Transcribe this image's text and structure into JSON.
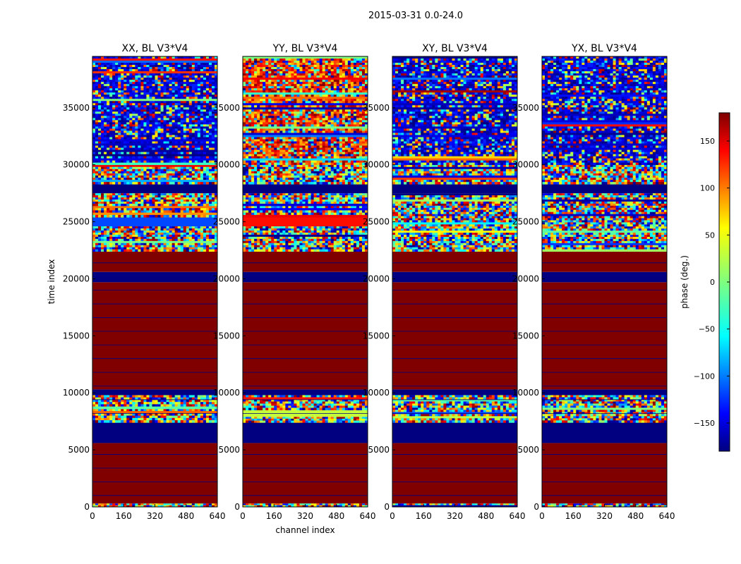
{
  "figure": {
    "suptitle": "2015-03-31 0.0-24.0",
    "colorbar": {
      "label": "phase (deg.)",
      "range": [
        -180,
        180
      ],
      "ticks": [
        "150",
        "100",
        "50",
        "0",
        "−50",
        "−100",
        "−150"
      ],
      "tick_values": [
        150,
        100,
        50,
        0,
        -50,
        -100,
        -150
      ],
      "colormap": "jet",
      "colors": [
        "#00007f",
        "#0000ff",
        "#007fff",
        "#00ffff",
        "#7fff7f",
        "#ffff00",
        "#ff7f00",
        "#ff0000",
        "#7f0000"
      ]
    }
  },
  "chart_data": [
    {
      "type": "heatmap",
      "title": "XX, BL V3*V4",
      "xlabel": "",
      "ylabel": "time index",
      "xlim": [
        0,
        640
      ],
      "ylim": [
        0,
        39500
      ],
      "xticks": [
        "0",
        "160",
        "320",
        "480",
        "640"
      ],
      "yticks": [
        "0",
        "5000",
        "10000",
        "15000",
        "20000",
        "25000",
        "30000",
        "35000"
      ],
      "value": "phase (deg.)",
      "bands": [
        {
          "from": 0,
          "to": 300,
          "pattern": "noise"
        },
        {
          "from": 300,
          "to": 5600,
          "pattern": "const",
          "phase": 180
        },
        {
          "from": 5600,
          "to": 7400,
          "pattern": "const",
          "phase": -180
        },
        {
          "from": 7400,
          "to": 8600,
          "pattern": "noise"
        },
        {
          "from": 8600,
          "to": 9800,
          "pattern": "noise"
        },
        {
          "from": 9800,
          "to": 10300,
          "pattern": "const",
          "phase": -180
        },
        {
          "from": 10300,
          "to": 19700,
          "pattern": "const",
          "phase": 180
        },
        {
          "from": 19700,
          "to": 20600,
          "pattern": "const",
          "phase": -180
        },
        {
          "from": 20600,
          "to": 22400,
          "pattern": "const",
          "phase": 180
        },
        {
          "from": 22400,
          "to": 24600,
          "pattern": "noise"
        },
        {
          "from": 24600,
          "to": 25400,
          "pattern": "const",
          "phase": -110
        },
        {
          "from": 25400,
          "to": 26400,
          "pattern": "noise"
        },
        {
          "from": 26400,
          "to": 27500,
          "pattern": "noise"
        },
        {
          "from": 27500,
          "to": 28300,
          "pattern": "const",
          "phase": -180
        },
        {
          "from": 28300,
          "to": 30000,
          "pattern": "noise"
        },
        {
          "from": 30000,
          "to": 39500,
          "pattern": "noise-blue"
        }
      ]
    },
    {
      "type": "heatmap",
      "title": "YY, BL V3*V4",
      "xlabel": "channel index",
      "ylabel": "",
      "xlim": [
        0,
        640
      ],
      "ylim": [
        0,
        39500
      ],
      "xticks": [
        "0",
        "160",
        "320",
        "480",
        "640"
      ],
      "yticks": [
        "0",
        "5000",
        "10000",
        "15000",
        "20000",
        "25000",
        "30000",
        "35000"
      ],
      "value": "phase (deg.)",
      "bands": [
        {
          "from": 0,
          "to": 300,
          "pattern": "noise"
        },
        {
          "from": 300,
          "to": 5600,
          "pattern": "const",
          "phase": 180
        },
        {
          "from": 5600,
          "to": 7400,
          "pattern": "const",
          "phase": -180
        },
        {
          "from": 7400,
          "to": 7900,
          "pattern": "noise"
        },
        {
          "from": 7900,
          "to": 8500,
          "pattern": "const",
          "phase": 25
        },
        {
          "from": 8500,
          "to": 9800,
          "pattern": "noise"
        },
        {
          "from": 9800,
          "to": 10300,
          "pattern": "const",
          "phase": -180
        },
        {
          "from": 10300,
          "to": 19700,
          "pattern": "const",
          "phase": 180
        },
        {
          "from": 19700,
          "to": 20600,
          "pattern": "const",
          "phase": -180
        },
        {
          "from": 20600,
          "to": 22400,
          "pattern": "const",
          "phase": 180
        },
        {
          "from": 22400,
          "to": 24600,
          "pattern": "noise"
        },
        {
          "from": 24600,
          "to": 25400,
          "pattern": "const",
          "phase": 130
        },
        {
          "from": 25400,
          "to": 26400,
          "pattern": "noise"
        },
        {
          "from": 26400,
          "to": 27500,
          "pattern": "noise"
        },
        {
          "from": 27500,
          "to": 28300,
          "pattern": "const",
          "phase": -180
        },
        {
          "from": 28300,
          "to": 30000,
          "pattern": "noise"
        },
        {
          "from": 30000,
          "to": 39500,
          "pattern": "noise-warm"
        }
      ]
    },
    {
      "type": "heatmap",
      "title": "XY, BL V3*V4",
      "xlabel": "",
      "ylabel": "",
      "xlim": [
        0,
        640
      ],
      "ylim": [
        0,
        39500
      ],
      "xticks": [
        "0",
        "160",
        "320",
        "480",
        "640"
      ],
      "yticks": [
        "0",
        "5000",
        "10000",
        "15000",
        "20000",
        "25000",
        "30000",
        "35000"
      ],
      "value": "phase (deg.)",
      "bands": [
        {
          "from": 0,
          "to": 300,
          "pattern": "noise"
        },
        {
          "from": 300,
          "to": 5600,
          "pattern": "const",
          "phase": 180
        },
        {
          "from": 5600,
          "to": 7400,
          "pattern": "const",
          "phase": -180
        },
        {
          "from": 7400,
          "to": 9800,
          "pattern": "noise"
        },
        {
          "from": 9800,
          "to": 10300,
          "pattern": "const",
          "phase": -180
        },
        {
          "from": 10300,
          "to": 19700,
          "pattern": "const",
          "phase": 180
        },
        {
          "from": 19700,
          "to": 20600,
          "pattern": "const",
          "phase": -180
        },
        {
          "from": 20600,
          "to": 22400,
          "pattern": "const",
          "phase": 180
        },
        {
          "from": 22400,
          "to": 27500,
          "pattern": "noise"
        },
        {
          "from": 27500,
          "to": 28300,
          "pattern": "const",
          "phase": -180
        },
        {
          "from": 28300,
          "to": 30000,
          "pattern": "noise"
        },
        {
          "from": 30000,
          "to": 39500,
          "pattern": "noise-blue"
        }
      ]
    },
    {
      "type": "heatmap",
      "title": "YX, BL V3*V4",
      "xlabel": "",
      "ylabel": "",
      "xlim": [
        0,
        640
      ],
      "ylim": [
        0,
        39500
      ],
      "xticks": [
        "0",
        "160",
        "320",
        "480",
        "640"
      ],
      "yticks": [
        "0",
        "5000",
        "10000",
        "15000",
        "20000",
        "25000",
        "30000",
        "35000"
      ],
      "value": "phase (deg.)",
      "bands": [
        {
          "from": 0,
          "to": 300,
          "pattern": "noise"
        },
        {
          "from": 300,
          "to": 5600,
          "pattern": "const",
          "phase": 180
        },
        {
          "from": 5600,
          "to": 7400,
          "pattern": "const",
          "phase": -180
        },
        {
          "from": 7400,
          "to": 9800,
          "pattern": "noise"
        },
        {
          "from": 9800,
          "to": 10300,
          "pattern": "const",
          "phase": -180
        },
        {
          "from": 10300,
          "to": 19700,
          "pattern": "const",
          "phase": 180
        },
        {
          "from": 19700,
          "to": 20600,
          "pattern": "const",
          "phase": -180
        },
        {
          "from": 20600,
          "to": 22400,
          "pattern": "const",
          "phase": 180
        },
        {
          "from": 22400,
          "to": 27500,
          "pattern": "noise"
        },
        {
          "from": 27500,
          "to": 28300,
          "pattern": "const",
          "phase": -180
        },
        {
          "from": 28300,
          "to": 30000,
          "pattern": "noise"
        },
        {
          "from": 30000,
          "to": 39500,
          "pattern": "noise-blue"
        }
      ]
    }
  ]
}
